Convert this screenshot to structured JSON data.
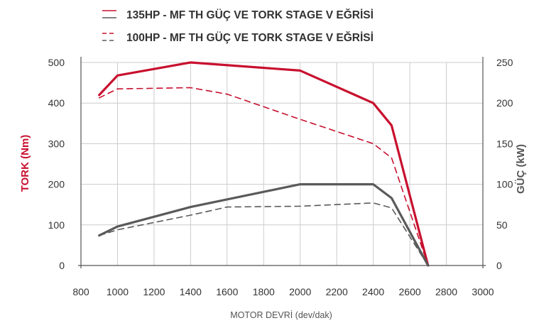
{
  "chart_data": {
    "type": "line",
    "xlabel": "MOTOR DEVRİ (dev/dak)",
    "ylabel_left": "TORK (Nm)",
    "ylabel_right": "GÜÇ (kW)",
    "xlim": [
      800,
      3000
    ],
    "ylim_left": [
      0,
      500
    ],
    "ylim_right": [
      0,
      250
    ],
    "x_ticks": [
      "800",
      "1000",
      "1200",
      "1400",
      "1600",
      "1800",
      "2000",
      "2200",
      "2400",
      "2600",
      "2800",
      "3000"
    ],
    "y_ticks_left": [
      "0",
      "100",
      "200",
      "300",
      "400",
      "500"
    ],
    "y_ticks_right": [
      "0",
      "50",
      "100",
      "150",
      "200",
      "250"
    ],
    "grid": true,
    "legend_position": "top",
    "legend": [
      {
        "label": "135HP - MF TH GÜÇ VE TORK STAGE V EĞRİSİ",
        "style": "solid"
      },
      {
        "label": "100HP - MF TH GÜÇ VE TORK STAGE V EĞRİSİ",
        "style": "dashed"
      }
    ],
    "colors": {
      "torque": "#c8102e",
      "power": "#5a5a5a",
      "grid": "#cccccc",
      "axis": "#555555"
    },
    "series": [
      {
        "axis": "left",
        "style": "solid",
        "color": "#c8102e",
        "x": [
          900,
          1000,
          1400,
          2000,
          2400,
          2500,
          2700
        ],
        "y": [
          420,
          468,
          500,
          480,
          400,
          345,
          0
        ]
      },
      {
        "axis": "left",
        "style": "dashed",
        "color": "#c8102e",
        "x": [
          900,
          1000,
          1400,
          1600,
          2000,
          2400,
          2500,
          2700
        ],
        "y": [
          413,
          435,
          438,
          422,
          360,
          300,
          265,
          0
        ]
      },
      {
        "axis": "right",
        "style": "solid",
        "color": "#5a5a5a",
        "x": [
          900,
          1000,
          1400,
          2000,
          2400,
          2500,
          2700
        ],
        "y": [
          37,
          48,
          72,
          100,
          100,
          83,
          0
        ]
      },
      {
        "axis": "right",
        "style": "dashed",
        "color": "#5a5a5a",
        "x": [
          900,
          1000,
          1400,
          1600,
          2000,
          2400,
          2500,
          2700
        ],
        "y": [
          37,
          44,
          62,
          72,
          73,
          77,
          71,
          0
        ]
      }
    ]
  }
}
